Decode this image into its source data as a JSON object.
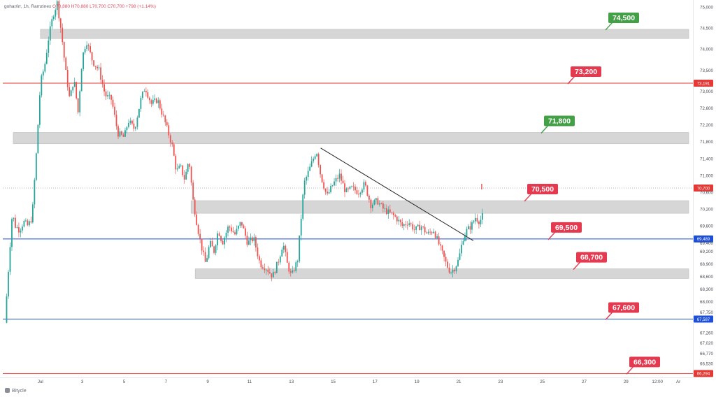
{
  "header": {
    "symbol": "gohar/irr, 1h, Ramzinex",
    "o": "O70,880",
    "h": "H70,880",
    "l": "L70,700",
    "c": "C70,700",
    "chg": "+798 (+1.14%)"
  },
  "brand": "Bitycle",
  "colors": {
    "up": "#26a69a",
    "down": "#ef5350",
    "zone": "#cfcfcf",
    "red_line": "#e53935",
    "blue_line": "#1e4fd8",
    "green_label": "#43a047",
    "red_label": "#e53950",
    "trendline": "#222222",
    "dotted_line": "#9e9e9e"
  },
  "chart_data": {
    "type": "candlestick",
    "ylim": [
      66200,
      75100
    ],
    "y_ticks": [
      "75,000",
      "74,500",
      "74,000",
      "73,500",
      "73,000",
      "72,600",
      "72,200",
      "71,800",
      "71,400",
      "71,000",
      "70,600",
      "70,200",
      "69,800",
      "69,400",
      "69,200",
      "68,900",
      "68,600",
      "68,300",
      "68,000",
      "67,750",
      "67,260",
      "67,020",
      "66,770",
      "66,530"
    ],
    "x_ticks": [
      "Jul",
      "3",
      "5",
      "7",
      "9",
      "11",
      "13",
      "15",
      "17",
      "19",
      "21",
      "23",
      "25",
      "27",
      "29",
      "12:00",
      "Ar"
    ],
    "x_tick_days": [
      1,
      3,
      5,
      7,
      9,
      11,
      13,
      15,
      17,
      19,
      21,
      23,
      25,
      27,
      29,
      30.5,
      31.5
    ],
    "xlim_days": [
      -0.8,
      32.2
    ],
    "price_path": [
      [
        -0.7,
        67500
      ],
      [
        -0.5,
        69000
      ],
      [
        -0.35,
        70100
      ],
      [
        -0.2,
        69800
      ],
      [
        0,
        69700
      ],
      [
        0.2,
        69900
      ],
      [
        0.4,
        69800
      ],
      [
        0.6,
        70000
      ],
      [
        0.8,
        71500
      ],
      [
        1.0,
        73200
      ],
      [
        1.2,
        73600
      ],
      [
        1.4,
        74300
      ],
      [
        1.6,
        74800
      ],
      [
        1.8,
        75100
      ],
      [
        2.0,
        74400
      ],
      [
        2.2,
        73500
      ],
      [
        2.4,
        72800
      ],
      [
        2.6,
        73300
      ],
      [
        2.8,
        72500
      ],
      [
        3.0,
        73800
      ],
      [
        3.2,
        74200
      ],
      [
        3.5,
        73700
      ],
      [
        3.8,
        73500
      ],
      [
        4.1,
        72900
      ],
      [
        4.4,
        72800
      ],
      [
        4.7,
        72000
      ],
      [
        5.0,
        71900
      ],
      [
        5.2,
        72300
      ],
      [
        5.5,
        72100
      ],
      [
        5.8,
        72800
      ],
      [
        6.0,
        73100
      ],
      [
        6.3,
        72700
      ],
      [
        6.6,
        72800
      ],
      [
        7.0,
        72200
      ],
      [
        7.3,
        71700
      ],
      [
        7.5,
        71100
      ],
      [
        7.7,
        71200
      ],
      [
        7.9,
        70900
      ],
      [
        8.1,
        71400
      ],
      [
        8.3,
        70400
      ],
      [
        8.5,
        69800
      ],
      [
        8.7,
        69300
      ],
      [
        8.9,
        68900
      ],
      [
        9.1,
        69400
      ],
      [
        9.3,
        69200
      ],
      [
        9.5,
        69700
      ],
      [
        9.7,
        69400
      ],
      [
        10.0,
        69800
      ],
      [
        10.3,
        69600
      ],
      [
        10.6,
        69900
      ],
      [
        10.9,
        69400
      ],
      [
        11.2,
        69500
      ],
      [
        11.5,
        68900
      ],
      [
        11.8,
        68800
      ],
      [
        12.1,
        68600
      ],
      [
        12.4,
        69000
      ],
      [
        12.6,
        69400
      ],
      [
        12.8,
        68900
      ],
      [
        13.0,
        68600
      ],
      [
        13.3,
        69000
      ],
      [
        13.6,
        70800
      ],
      [
        13.9,
        71200
      ],
      [
        14.2,
        71600
      ],
      [
        14.4,
        71000
      ],
      [
        14.7,
        70500
      ],
      [
        15.0,
        70800
      ],
      [
        15.3,
        71000
      ],
      [
        15.6,
        70600
      ],
      [
        15.9,
        70700
      ],
      [
        16.2,
        70600
      ],
      [
        16.5,
        70800
      ],
      [
        16.8,
        70300
      ],
      [
        17.1,
        70400
      ],
      [
        17.4,
        70200
      ],
      [
        17.7,
        70100
      ],
      [
        18.0,
        70000
      ],
      [
        18.3,
        69800
      ],
      [
        18.6,
        69900
      ],
      [
        18.9,
        69700
      ],
      [
        19.2,
        69800
      ],
      [
        19.5,
        69600
      ],
      [
        19.8,
        69700
      ],
      [
        20.1,
        69300
      ],
      [
        20.4,
        68900
      ],
      [
        20.6,
        68700
      ],
      [
        20.8,
        68800
      ],
      [
        21.0,
        69000
      ],
      [
        21.2,
        69500
      ],
      [
        21.4,
        69700
      ],
      [
        21.6,
        69800
      ],
      [
        21.8,
        70000
      ],
      [
        22.0,
        69900
      ],
      [
        22.2,
        70100
      ]
    ],
    "levels": [
      {
        "value": 73191,
        "color": "red",
        "label": "73,200",
        "axis_label": "73,191"
      },
      {
        "value": 69489,
        "color": "blue",
        "label": "69,500",
        "axis_label": "69,489"
      },
      {
        "value": 67587,
        "color": "blue",
        "label": "67,600",
        "axis_label": "67,587"
      },
      {
        "value": 66294,
        "color": "red",
        "label": "66,300",
        "axis_label": "66,294"
      }
    ],
    "current_price": {
      "value": 70700,
      "axis_label": "70,700"
    },
    "zones": [
      {
        "from_day": 1.0,
        "to_day": 32.0,
        "low": 74250,
        "high": 74470,
        "label": "74,500",
        "label_color": "green"
      },
      {
        "from_day": -0.3,
        "to_day": 32.0,
        "low": 71750,
        "high": 72020,
        "label": "71,800",
        "label_color": "green"
      },
      {
        "from_day": 8.2,
        "to_day": 32.0,
        "low": 70100,
        "high": 70400,
        "label": "70,500",
        "label_color": "red"
      },
      {
        "from_day": 8.4,
        "to_day": 32.0,
        "low": 68550,
        "high": 68780,
        "label": "68,700",
        "label_color": "red"
      }
    ],
    "trendline": {
      "from": [
        14.4,
        71650
      ],
      "to": [
        21.7,
        69450
      ]
    }
  }
}
